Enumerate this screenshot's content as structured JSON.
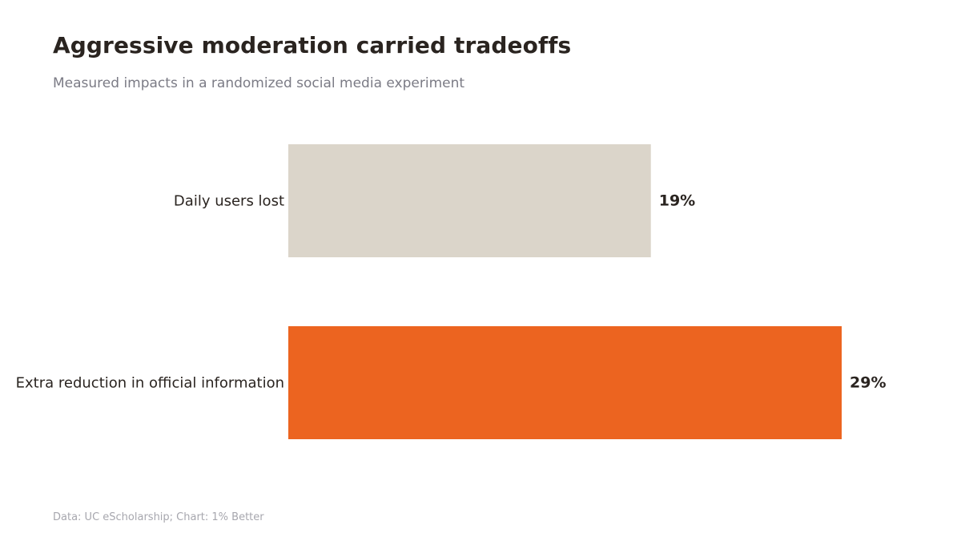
{
  "header": {
    "title": "Aggressive moderation carried tradeoffs",
    "subtitle": "Measured impacts in a randomized social media experiment"
  },
  "footer": {
    "source": "Data: UC eScholarship; Chart: 1% Better"
  },
  "colors": {
    "bar_1": "#dbd5ca",
    "bar_2": "#ec6420",
    "text": "#2a2420",
    "subtitle": "#7b7b85",
    "source": "#a7a7ae"
  },
  "chart_data": {
    "type": "bar",
    "orientation": "horizontal",
    "title": "Aggressive moderation carried tradeoffs",
    "subtitle": "Measured impacts in a randomized social media experiment",
    "categories": [
      "Daily users lost",
      "Extra reduction in official information"
    ],
    "values": [
      19,
      29
    ],
    "value_labels": [
      "19%",
      "29%"
    ],
    "unit": "%",
    "xlim": [
      0,
      29
    ],
    "grid": false,
    "legend": "none"
  }
}
